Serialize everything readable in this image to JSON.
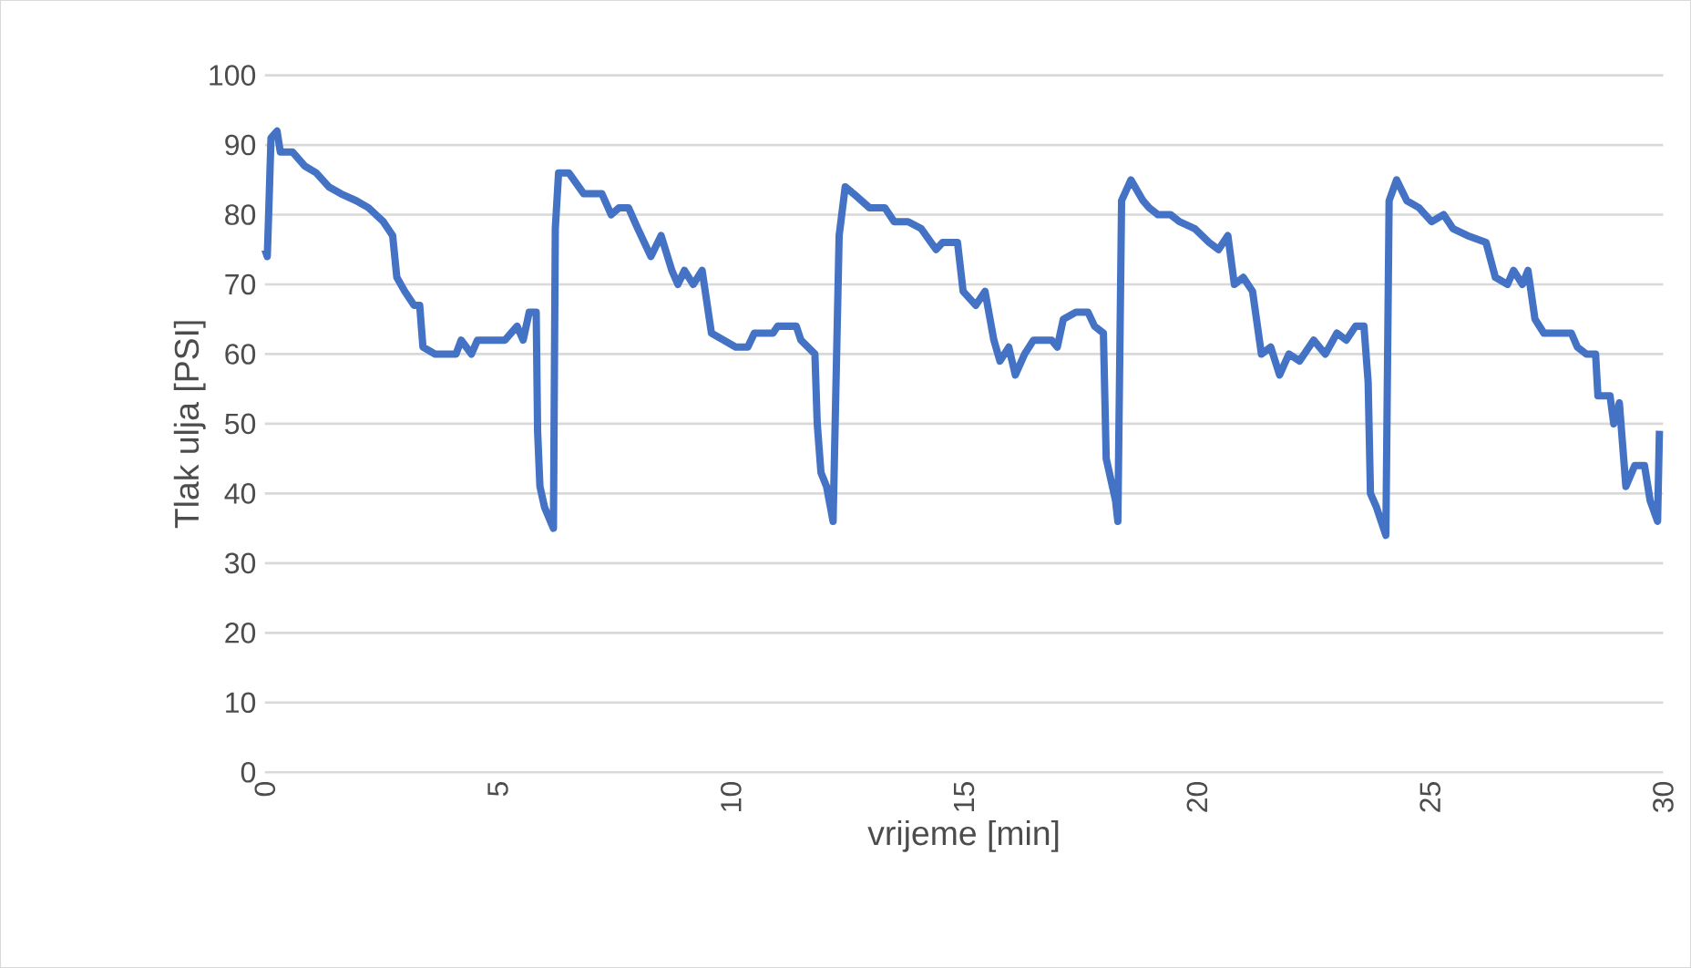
{
  "chart_data": {
    "type": "line",
    "xlabel": "vrijeme [min]",
    "ylabel": "Tlak ulja [PSI]",
    "xlim": [
      0,
      30
    ],
    "ylim": [
      0,
      100
    ],
    "xticks": [
      0,
      5,
      10,
      15,
      20,
      25,
      30
    ],
    "yticks": [
      0,
      10,
      20,
      30,
      40,
      50,
      60,
      70,
      80,
      90,
      100
    ],
    "grid": "y",
    "series": [
      {
        "color": "#4472c4",
        "x": [
          0,
          0.05,
          0.07,
          0.13,
          0.26,
          0.33,
          0.59,
          0.85,
          1.1,
          1.37,
          1.63,
          1.96,
          2.22,
          2.54,
          2.74,
          2.83,
          3.0,
          3.2,
          3.32,
          3.39,
          3.65,
          4.1,
          4.21,
          4.43,
          4.56,
          5.15,
          5.41,
          5.54,
          5.67,
          5.82,
          5.85,
          5.9,
          6.0,
          6.19,
          6.23,
          6.3,
          6.52,
          6.84,
          7.23,
          7.43,
          7.6,
          7.8,
          8.0,
          8.28,
          8.5,
          8.73,
          8.86,
          9.0,
          9.19,
          9.38,
          9.58,
          9.84,
          10.1,
          10.36,
          10.5,
          10.9,
          11.0,
          11.4,
          11.5,
          11.8,
          11.85,
          11.93,
          12.05,
          12.19,
          12.32,
          12.45,
          12.63,
          12.97,
          13.3,
          13.5,
          13.8,
          14.08,
          14.4,
          14.54,
          14.86,
          14.98,
          15.25,
          15.45,
          15.64,
          15.77,
          15.96,
          16.1,
          16.3,
          16.49,
          16.88,
          17.0,
          17.13,
          17.4,
          17.66,
          17.8,
          17.99,
          18.05,
          18.25,
          18.3,
          18.38,
          18.58,
          18.84,
          18.97,
          19.16,
          19.43,
          19.62,
          19.95,
          20.26,
          20.46,
          20.66,
          20.8,
          20.99,
          21.19,
          21.38,
          21.58,
          21.77,
          21.97,
          22.2,
          22.5,
          22.75,
          23.0,
          23.2,
          23.4,
          23.58,
          23.67,
          23.72,
          23.85,
          24.05,
          24.12,
          24.28,
          24.5,
          24.76,
          25.03,
          25.29,
          25.49,
          25.8,
          26.2,
          26.4,
          26.66,
          26.79,
          26.98,
          27.1,
          27.25,
          27.44,
          28.03,
          28.16,
          28.35,
          28.55,
          28.6,
          28.86,
          28.94,
          29.06,
          29.2,
          29.39,
          29.6,
          29.72,
          29.88,
          29.92
        ],
        "values": [
          75,
          74,
          78,
          91,
          92,
          89,
          89,
          87,
          86,
          84,
          83,
          82,
          81,
          79,
          77,
          71,
          69,
          67,
          67,
          61,
          60,
          60,
          62,
          60,
          62,
          62,
          64,
          62,
          66,
          66,
          49,
          41,
          38,
          35,
          78,
          86,
          86,
          83,
          83,
          80,
          81,
          81,
          78,
          74,
          77,
          72,
          70,
          72,
          70,
          72,
          63,
          62,
          61,
          61,
          63,
          63,
          64,
          64,
          62,
          60,
          50,
          43,
          41,
          36,
          77,
          84,
          83,
          81,
          81,
          79,
          79,
          78,
          75,
          76,
          76,
          69,
          67,
          69,
          62,
          59,
          61,
          57,
          60,
          62,
          62,
          61,
          65,
          66,
          66,
          64,
          63,
          45,
          39,
          36,
          82,
          85,
          82,
          81,
          80,
          80,
          79,
          78,
          76,
          75,
          77,
          70,
          71,
          69,
          60,
          61,
          57,
          60,
          59,
          62,
          60,
          63,
          62,
          64,
          64,
          56,
          40,
          38,
          34,
          82,
          85,
          82,
          81,
          79,
          80,
          78,
          77,
          76,
          71,
          70,
          72,
          70,
          72,
          65,
          63,
          63,
          61,
          60,
          60,
          54,
          54,
          50,
          53,
          41,
          44,
          44,
          39,
          36,
          49
        ]
      }
    ]
  }
}
